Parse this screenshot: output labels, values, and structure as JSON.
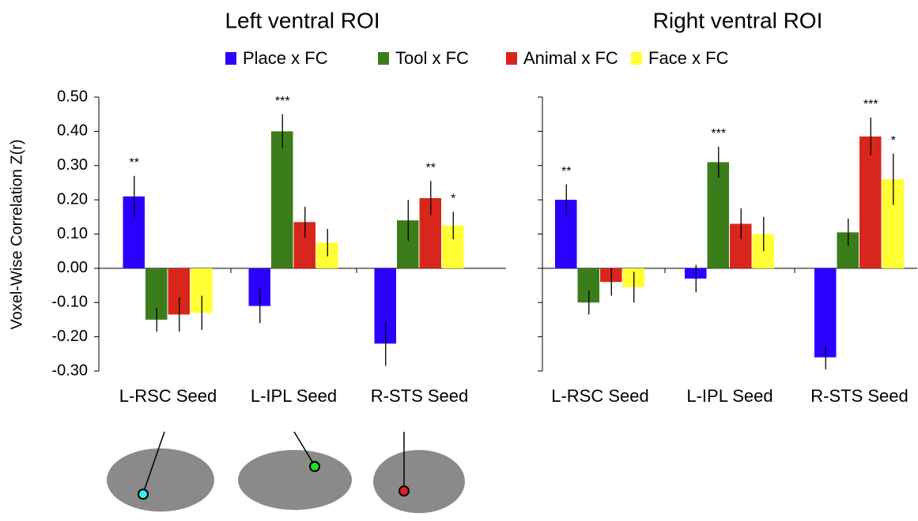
{
  "chart_data": [
    {
      "type": "bar",
      "title": "Left ventral ROI",
      "ylabel": "Voxel-Wise Correlation Z(r)",
      "categories": [
        "L-RSC Seed",
        "L-IPL Seed",
        "R-STS Seed"
      ],
      "series": [
        {
          "name": "Place x FC",
          "color": "#2b00ff",
          "values": [
            0.21,
            -0.11,
            -0.22
          ],
          "errors": [
            0.06,
            0.05,
            0.065
          ]
        },
        {
          "name": "Tool x FC",
          "color": "#3a7d1a",
          "values": [
            -0.15,
            0.4,
            0.14
          ],
          "errors": [
            0.035,
            0.05,
            0.06
          ]
        },
        {
          "name": "Animal x FC",
          "color": "#d9261c",
          "values": [
            -0.135,
            0.135,
            0.205
          ],
          "errors": [
            0.05,
            0.045,
            0.05
          ]
        },
        {
          "name": "Face x FC",
          "color": "#ffff33",
          "values": [
            -0.13,
            0.075,
            0.125
          ],
          "errors": [
            0.05,
            0.04,
            0.04
          ]
        }
      ],
      "annotations": [
        {
          "category": 0,
          "series": 0,
          "text": "**"
        },
        {
          "category": 1,
          "series": 1,
          "text": "***"
        },
        {
          "category": 2,
          "series": 2,
          "text": "**"
        },
        {
          "category": 2,
          "series": 3,
          "text": "*"
        }
      ],
      "ylim": [
        -0.3,
        0.5
      ],
      "yticks": [
        {
          "value": -0.3,
          "label": "-0.30"
        },
        {
          "value": -0.2,
          "label": "-0.20"
        },
        {
          "value": -0.1,
          "label": "-0.10"
        },
        {
          "value": 0,
          "label": "0.00"
        },
        {
          "value": 0.1,
          "label": "0.10"
        },
        {
          "value": 0.2,
          "label": "0.20"
        },
        {
          "value": 0.3,
          "label": "0.30"
        },
        {
          "value": 0.4,
          "label": "0.40"
        },
        {
          "value": 0.5,
          "label": "0.50"
        }
      ]
    },
    {
      "type": "bar",
      "title": "Right ventral ROI",
      "categories": [
        "L-RSC Seed",
        "L-IPL Seed",
        "R-STS Seed"
      ],
      "series": [
        {
          "color": "#2b00ff",
          "values": [
            0.2,
            -0.03,
            -0.26
          ],
          "errors": [
            0.045,
            0.04,
            0.035
          ]
        },
        {
          "color": "#3a7d1a",
          "values": [
            -0.1,
            0.31,
            0.105
          ],
          "errors": [
            0.035,
            0.045,
            0.04
          ]
        },
        {
          "color": "#d9261c",
          "values": [
            -0.04,
            0.13,
            0.385
          ],
          "errors": [
            0.04,
            0.045,
            0.055
          ]
        },
        {
          "color": "#ffff33",
          "values": [
            -0.055,
            0.1,
            0.26
          ],
          "errors": [
            0.045,
            0.05,
            0.075
          ]
        }
      ],
      "annotations": [
        {
          "category": 0,
          "series": 0,
          "text": "**"
        },
        {
          "category": 1,
          "series": 1,
          "text": "***"
        },
        {
          "category": 2,
          "series": 2,
          "text": "***"
        },
        {
          "category": 2,
          "series": 3,
          "text": "*"
        }
      ],
      "ylim": [
        -0.3,
        0.5
      ],
      "yticks": [
        -0.3,
        -0.2,
        -0.1,
        0,
        0.1,
        0.2,
        0.3,
        0.4,
        0.5
      ]
    }
  ]
}
